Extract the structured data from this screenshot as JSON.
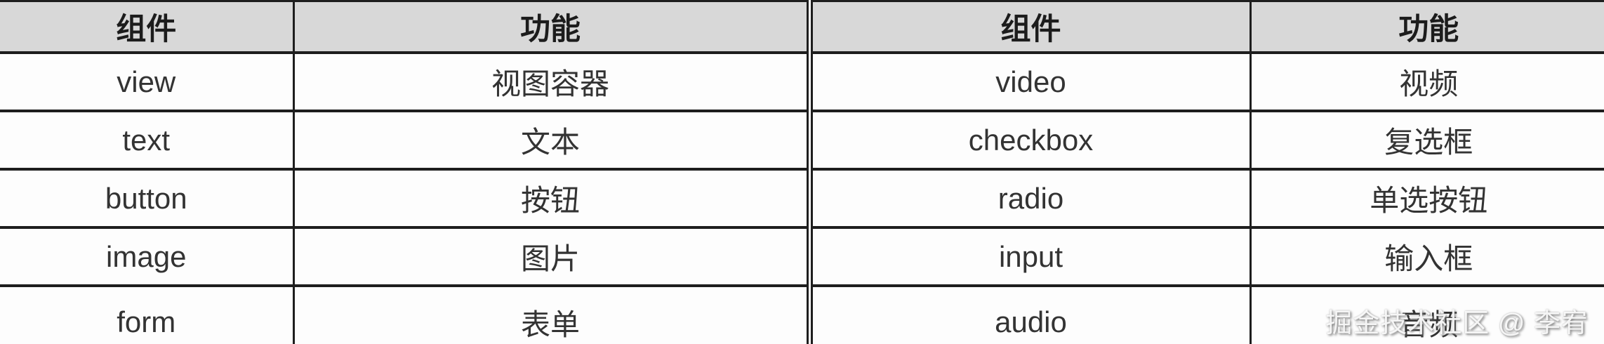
{
  "tables": [
    {
      "name": "mini-program-components-left",
      "headers": {
        "component": "组件",
        "function": "功能"
      },
      "rows": [
        {
          "component": "view",
          "function": "视图容器"
        },
        {
          "component": "text",
          "function": "文本"
        },
        {
          "component": "button",
          "function": "按钮"
        },
        {
          "component": "image",
          "function": "图片"
        },
        {
          "component": "form",
          "function": "表单"
        }
      ]
    },
    {
      "name": "mini-program-components-right",
      "headers": {
        "component": "组件",
        "function": "功能"
      },
      "rows": [
        {
          "component": "video",
          "function": "视频"
        },
        {
          "component": "checkbox",
          "function": "复选框"
        },
        {
          "component": "radio",
          "function": "单选按钮"
        },
        {
          "component": "input",
          "function": "输入框"
        },
        {
          "component": "audio",
          "function": "音频"
        }
      ]
    }
  ],
  "watermark": {
    "text": "掘金技术社区 @ 李宥"
  },
  "colors": {
    "header_bg": "#d8d8d8",
    "border": "#1e1e1e",
    "header_text": "#1c1c1c",
    "cell_text": "#333333",
    "row_bg": "#fdfdfd",
    "watermark_text": "#fafafa"
  }
}
